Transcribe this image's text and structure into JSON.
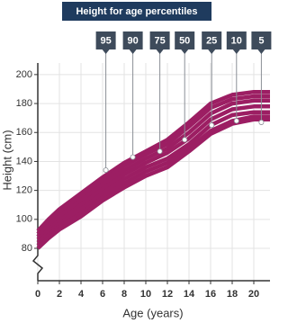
{
  "chart_data": {
    "type": "line",
    "title": "Height for age percentiles",
    "x_label": "Age (years)",
    "y_label": "Height (cm)",
    "x": [
      0,
      1,
      2,
      4,
      6,
      8,
      10,
      12,
      14,
      16,
      18,
      20,
      21.5
    ],
    "series": [
      {
        "name": "95",
        "color": "#9c1e63",
        "values": [
          92,
          100,
          107,
          118,
          129,
          139,
          147,
          155,
          167,
          180,
          186,
          188,
          188
        ],
        "marker": {
          "x": 6.3,
          "y": 134
        }
      },
      {
        "name": "90",
        "color": "#9c1e63",
        "values": [
          90,
          98,
          105,
          116,
          127,
          137,
          145,
          152,
          164,
          177,
          183,
          185,
          185
        ],
        "marker": {
          "x": 8.8,
          "y": 143
        }
      },
      {
        "name": "75",
        "color": "#9c1e63",
        "values": [
          88,
          96,
          102,
          113,
          124,
          134,
          142,
          149,
          160,
          173,
          180,
          182,
          182
        ],
        "marker": {
          "x": 11.3,
          "y": 147
        }
      },
      {
        "name": "50",
        "color": "#9c1e63",
        "values": [
          86,
          93,
          99,
          110,
          121,
          131,
          139,
          146,
          156,
          169,
          176,
          178,
          178
        ],
        "marker": {
          "x": 13.6,
          "y": 155
        }
      },
      {
        "name": "25",
        "color": "#9c1e63",
        "values": [
          84,
          91,
          97,
          107,
          118,
          128,
          136,
          142,
          152,
          165,
          172,
          174,
          174
        ],
        "marker": {
          "x": 16.1,
          "y": 165
        }
      },
      {
        "name": "10",
        "color": "#9c1e63",
        "values": [
          82,
          89,
          95,
          104,
          115,
          125,
          133,
          139,
          149,
          161,
          168,
          171,
          171
        ],
        "marker": {
          "x": 18.4,
          "y": 168
        }
      },
      {
        "name": "5",
        "color": "#9c1e63",
        "values": [
          80,
          87,
          93,
          102,
          113,
          122,
          130,
          136,
          147,
          159,
          166,
          169,
          169
        ],
        "marker": {
          "x": 20.7,
          "y": 167
        }
      }
    ],
    "xlim": [
      0,
      22
    ],
    "xticks": [
      0,
      2,
      4,
      6,
      8,
      10,
      12,
      14,
      16,
      18,
      20
    ],
    "ylim": [
      80,
      208
    ],
    "yticks": [
      80,
      100,
      120,
      140,
      160,
      180,
      200
    ],
    "grid": true
  }
}
